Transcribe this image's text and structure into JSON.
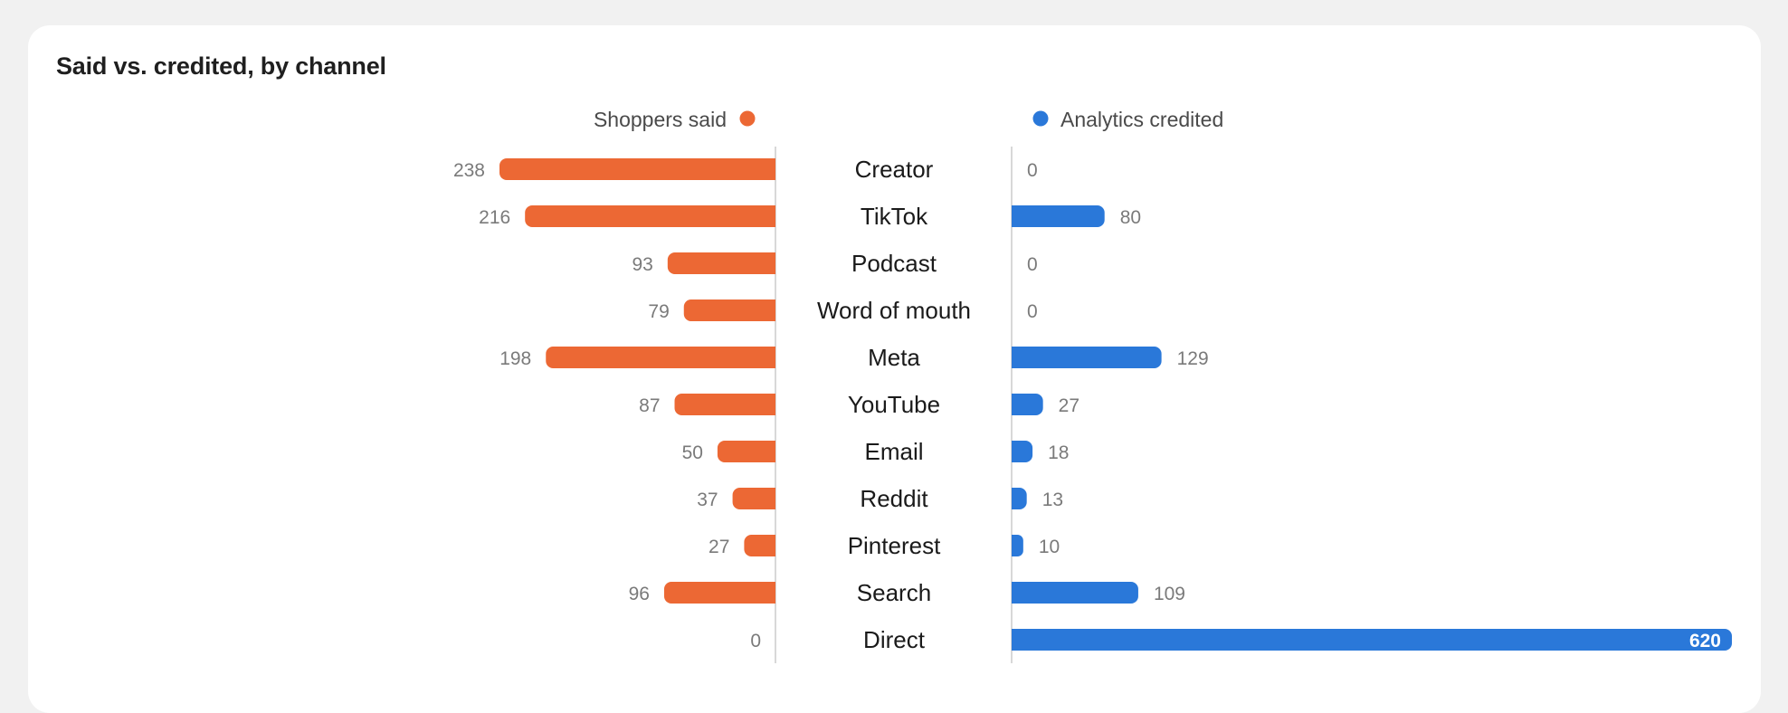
{
  "chart_data": {
    "type": "bar",
    "title": "Said vs. credited, by channel",
    "categories": [
      "Creator",
      "TikTok",
      "Podcast",
      "Word of mouth",
      "Meta",
      "YouTube",
      "Email",
      "Reddit",
      "Pinterest",
      "Search",
      "Direct"
    ],
    "series": [
      {
        "name": "Shoppers said",
        "color": "#ec6834",
        "values": [
          238,
          216,
          93,
          79,
          198,
          87,
          50,
          37,
          27,
          96,
          0
        ]
      },
      {
        "name": "Analytics credited",
        "color": "#2a78d9",
        "values": [
          0,
          80,
          0,
          0,
          129,
          27,
          18,
          13,
          10,
          109,
          620
        ]
      }
    ],
    "legend_placement": "top",
    "grid": false
  }
}
